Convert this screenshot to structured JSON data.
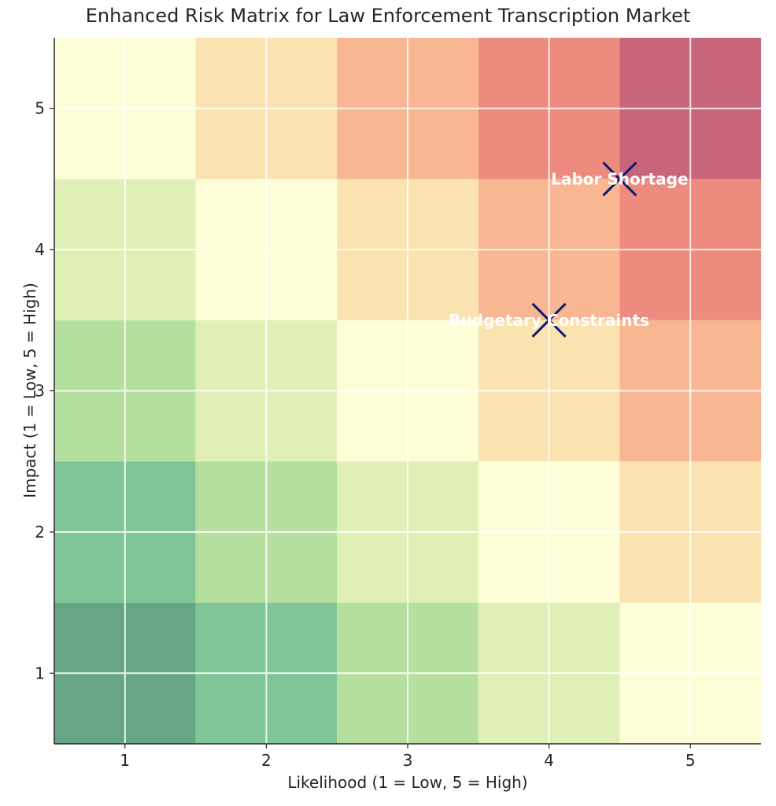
{
  "chart_data": {
    "type": "heatmap",
    "title": "Enhanced Risk Matrix for Law Enforcement Transcription Market",
    "xlabel": "Likelihood (1 = Low, 5 = High)",
    "ylabel": "Impact (1 = Low, 5 = High)",
    "x_ticks": [
      "1",
      "2",
      "3",
      "4",
      "5"
    ],
    "y_ticks": [
      "1",
      "2",
      "3",
      "4",
      "5"
    ],
    "xlim": [
      0.5,
      5.5
    ],
    "ylim": [
      0.5,
      5.5
    ],
    "grid": true,
    "colormap": "RdYlGn_r",
    "cell_values_note_free": null,
    "cells": [
      {
        "likelihood": 1,
        "impact": 1,
        "color": "#66a586"
      },
      {
        "likelihood": 2,
        "impact": 1,
        "color": "#80c598"
      },
      {
        "likelihood": 3,
        "impact": 1,
        "color": "#b5df9f"
      },
      {
        "likelihood": 4,
        "impact": 1,
        "color": "#e0efb6"
      },
      {
        "likelihood": 5,
        "impact": 1,
        "color": "#fdfdd8"
      },
      {
        "likelihood": 1,
        "impact": 2,
        "color": "#80c598"
      },
      {
        "likelihood": 2,
        "impact": 2,
        "color": "#b5df9f"
      },
      {
        "likelihood": 3,
        "impact": 2,
        "color": "#e0efb6"
      },
      {
        "likelihood": 4,
        "impact": 2,
        "color": "#fdfdd8"
      },
      {
        "likelihood": 5,
        "impact": 2,
        "color": "#fae3b0"
      },
      {
        "likelihood": 1,
        "impact": 3,
        "color": "#b5df9f"
      },
      {
        "likelihood": 2,
        "impact": 3,
        "color": "#e0efb6"
      },
      {
        "likelihood": 3,
        "impact": 3,
        "color": "#fdfdd8"
      },
      {
        "likelihood": 4,
        "impact": 3,
        "color": "#fae3b0"
      },
      {
        "likelihood": 5,
        "impact": 3,
        "color": "#f8b693"
      },
      {
        "likelihood": 1,
        "impact": 4,
        "color": "#e0efb6"
      },
      {
        "likelihood": 2,
        "impact": 4,
        "color": "#fdfdd8"
      },
      {
        "likelihood": 3,
        "impact": 4,
        "color": "#fae3b0"
      },
      {
        "likelihood": 4,
        "impact": 4,
        "color": "#f8b693"
      },
      {
        "likelihood": 5,
        "impact": 4,
        "color": "#ec8b7e"
      },
      {
        "likelihood": 1,
        "impact": 5,
        "color": "#fdfdd8"
      },
      {
        "likelihood": 2,
        "impact": 5,
        "color": "#fae3b0"
      },
      {
        "likelihood": 3,
        "impact": 5,
        "color": "#f8b693"
      },
      {
        "likelihood": 4,
        "impact": 5,
        "color": "#ec8b7e"
      },
      {
        "likelihood": 5,
        "impact": 5,
        "color": "#c8657a"
      }
    ],
    "points": [
      {
        "label": "Labor Shortage",
        "likelihood": 4.5,
        "impact": 4.5
      },
      {
        "label": "Budgetary Constraints",
        "likelihood": 4.0,
        "impact": 3.5
      }
    ],
    "marker": {
      "shape": "x",
      "color": "#0d1a6e"
    },
    "annotation_color": "#ffffff",
    "grid_color": "#ffffff"
  }
}
